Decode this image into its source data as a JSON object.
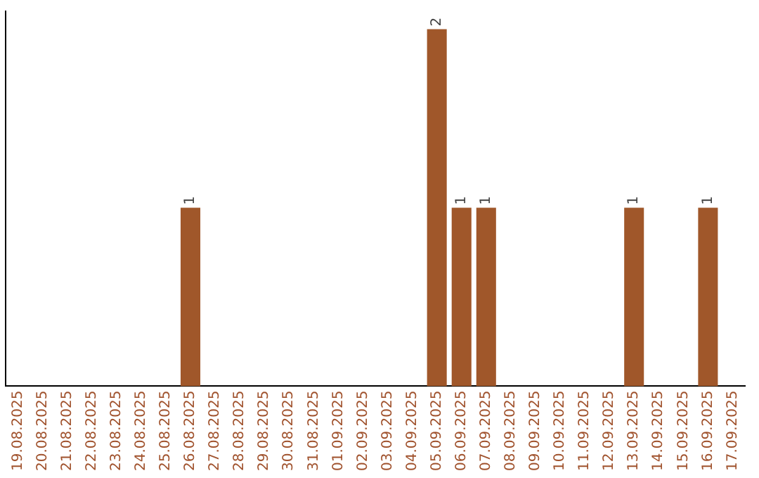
{
  "chart_data": {
    "type": "bar",
    "categories": [
      "19.08.2025",
      "20.08.2025",
      "21.08.2025",
      "22.08.2025",
      "23.08.2025",
      "24.08.2025",
      "25.08.2025",
      "26.08.2025",
      "27.08.2025",
      "28.08.2025",
      "29.08.2025",
      "30.08.2025",
      "31.08.2025",
      "01.09.2025",
      "02.09.2025",
      "03.09.2025",
      "04.09.2025",
      "05.09.2025",
      "06.09.2025",
      "07.09.2025",
      "08.09.2025",
      "09.09.2025",
      "10.09.2025",
      "11.09.2025",
      "12.09.2025",
      "13.09.2025",
      "14.09.2025",
      "15.09.2025",
      "16.09.2025",
      "17.09.2025"
    ],
    "values": [
      0,
      0,
      0,
      0,
      0,
      0,
      0,
      1,
      0,
      0,
      0,
      0,
      0,
      0,
      0,
      0,
      0,
      2,
      1,
      1,
      0,
      0,
      0,
      0,
      0,
      1,
      0,
      0,
      1,
      0
    ],
    "value_labels": [
      null,
      null,
      null,
      null,
      null,
      null,
      null,
      "1",
      null,
      null,
      null,
      null,
      null,
      null,
      null,
      null,
      null,
      "2",
      "1",
      "1",
      null,
      null,
      null,
      null,
      null,
      "1",
      null,
      null,
      "1",
      null
    ],
    "color": "#a0572a",
    "ylim": [
      0,
      2.1
    ],
    "tick_labels": "x",
    "grid": false,
    "legend": false
  }
}
